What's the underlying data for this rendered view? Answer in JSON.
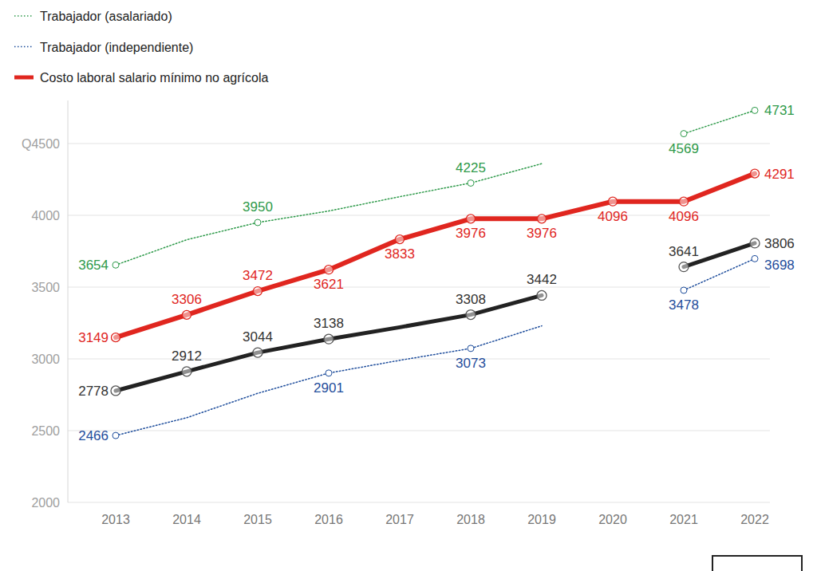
{
  "chart_data": {
    "type": "line",
    "categories": [
      "2013",
      "2014",
      "2015",
      "2016",
      "2017",
      "2018",
      "2019",
      "2020",
      "2021",
      "2022"
    ],
    "ylim": [
      2000,
      4800
    ],
    "yticks": [
      2000,
      2500,
      3000,
      3500,
      4000,
      {
        "value": 4500,
        "label": "Q4500"
      }
    ],
    "grid": true,
    "legend": "top-left",
    "series": [
      {
        "name": "Trabajador (asalariado)",
        "color": "#2e9a4a",
        "line_style": "dotted",
        "marker": "circle",
        "values": [
          3654,
          3830,
          3950,
          4030,
          4130,
          4225,
          4360,
          null,
          4569,
          4731
        ],
        "value_labels": [
          "3654",
          null,
          "3950",
          null,
          null,
          "4225",
          null,
          null,
          "4569",
          "4731"
        ]
      },
      {
        "name": "Trabajador (independiente)",
        "color": "#1f4e9c",
        "line_style": "dotted",
        "marker": "circle",
        "values": [
          2466,
          2590,
          2760,
          2901,
          2990,
          3073,
          3230,
          null,
          3478,
          3698
        ],
        "value_labels": [
          "2466",
          null,
          null,
          "2901",
          null,
          "3073",
          null,
          null,
          "3478",
          "3698"
        ]
      },
      {
        "name": "Costo laboral salario mínimo no agrícola",
        "color": "#e0261f",
        "line_style": "solid",
        "marker": "circle",
        "values": [
          3149,
          3306,
          3472,
          3621,
          3833,
          3976,
          3976,
          4096,
          4096,
          4291
        ],
        "value_labels": [
          "3149",
          "3306",
          "3472",
          "3621",
          "3833",
          "3976",
          "3976",
          "4096",
          "4096",
          "4291"
        ]
      },
      {
        "color": "#222222",
        "line_style": "solid",
        "marker": "circle",
        "values": [
          2778,
          2912,
          3044,
          3138,
          3220,
          3308,
          3442,
          null,
          3641,
          3806
        ],
        "value_labels": [
          "2778",
          "2912",
          "3044",
          "3138",
          null,
          "3308",
          "3442",
          null,
          "3641",
          "3806"
        ]
      }
    ]
  }
}
